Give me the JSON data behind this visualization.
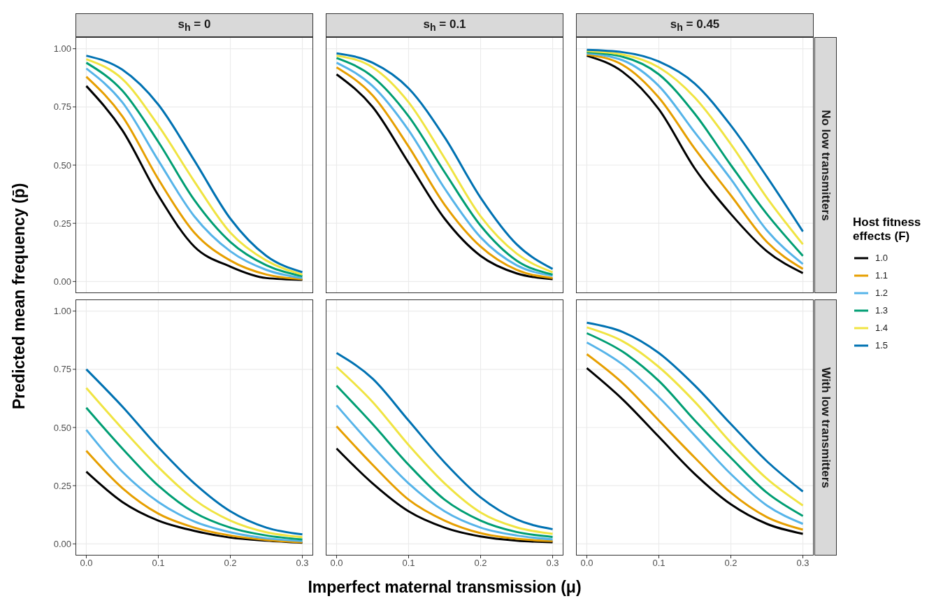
{
  "chart_data": [
    {
      "type": "line",
      "title": "s$_{h}$ = 0",
      "ylabel": "Predicted mean frequency (p̄)",
      "legend": "right",
      "legend_title": "Host fitness effects (F)",
      "x": [
        0,
        0.05,
        0.1,
        0.15,
        0.2,
        0.25,
        0.3
      ],
      "xlim": [
        -0.015,
        0.315
      ],
      "ylim": [
        -0.05,
        1.05
      ],
      "xticks": [
        {
          "value": 0,
          "label": null
        },
        {
          "value": 0.1,
          "label": null
        },
        {
          "value": 0.2,
          "label": null
        },
        {
          "value": 0.3,
          "label": null
        }
      ],
      "yticks": [
        {
          "value": 0,
          "label": "0.00"
        },
        {
          "value": 0.25,
          "label": "0.25"
        },
        {
          "value": 0.5,
          "label": "0.50"
        },
        {
          "value": 0.75,
          "label": "0.75"
        },
        {
          "value": 1,
          "label": "1.00"
        }
      ],
      "grid": true,
      "tick_labels": "y",
      "marker": "none",
      "line_style": "solid",
      "series": [
        {
          "name": "1.0",
          "color": "#000000",
          "values": [
            0.84,
            0.65,
            0.37,
            0.15,
            0.064,
            0.015,
            0.007
          ]
        },
        {
          "name": "1.1",
          "color": "#e69f00",
          "values": [
            0.88,
            0.71,
            0.44,
            0.21,
            0.09,
            0.03,
            0.01
          ]
        },
        {
          "name": "1.2",
          "color": "#56b4e9",
          "values": [
            0.915,
            0.77,
            0.52,
            0.28,
            0.13,
            0.05,
            0.015
          ]
        },
        {
          "name": "1.3",
          "color": "#009e73",
          "values": [
            0.94,
            0.82,
            0.6,
            0.35,
            0.17,
            0.07,
            0.023
          ]
        },
        {
          "name": "1.4",
          "color": "#f0e442",
          "values": [
            0.955,
            0.87,
            0.67,
            0.43,
            0.21,
            0.09,
            0.03
          ]
        },
        {
          "name": "1.5",
          "color": "#0072b2",
          "values": [
            0.97,
            0.91,
            0.76,
            0.52,
            0.27,
            0.11,
            0.04
          ]
        }
      ]
    },
    {
      "type": "line",
      "title": "s$_{h}$ = 0.1",
      "x": [
        0,
        0.05,
        0.1,
        0.15,
        0.2,
        0.25,
        0.3
      ],
      "xlim": [
        -0.015,
        0.315
      ],
      "ylim": [
        -0.05,
        1.05
      ],
      "xticks": [
        {
          "value": 0,
          "label": null
        },
        {
          "value": 0.1,
          "label": null
        },
        {
          "value": 0.2,
          "label": null
        },
        {
          "value": 0.3,
          "label": null
        }
      ],
      "yticks": [
        {
          "value": 0,
          "label": null
        },
        {
          "value": 0.25,
          "label": null
        },
        {
          "value": 0.5,
          "label": null
        },
        {
          "value": 0.75,
          "label": null
        },
        {
          "value": 1,
          "label": null
        }
      ],
      "grid": true,
      "tick_labels": false,
      "marker": "none",
      "line_style": "solid",
      "series": [
        {
          "name": "1.0",
          "color": "#000000",
          "values": [
            0.89,
            0.75,
            0.51,
            0.27,
            0.11,
            0.035,
            0.01
          ]
        },
        {
          "name": "1.1",
          "color": "#e69f00",
          "values": [
            0.92,
            0.8,
            0.58,
            0.33,
            0.15,
            0.05,
            0.015
          ]
        },
        {
          "name": "1.2",
          "color": "#56b4e9",
          "values": [
            0.94,
            0.84,
            0.65,
            0.4,
            0.19,
            0.07,
            0.025
          ]
        },
        {
          "name": "1.3",
          "color": "#009e73",
          "values": [
            0.96,
            0.88,
            0.71,
            0.47,
            0.24,
            0.09,
            0.03
          ]
        },
        {
          "name": "1.4",
          "color": "#f0e442",
          "values": [
            0.97,
            0.92,
            0.77,
            0.53,
            0.28,
            0.12,
            0.04
          ]
        },
        {
          "name": "1.5",
          "color": "#0072b2",
          "values": [
            0.98,
            0.94,
            0.83,
            0.62,
            0.36,
            0.16,
            0.054
          ]
        }
      ]
    },
    {
      "type": "line",
      "title": "s$_{h}$ = 0.45",
      "y2label": "No low transmitters",
      "x": [
        0,
        0.05,
        0.1,
        0.15,
        0.2,
        0.25,
        0.3
      ],
      "xlim": [
        -0.015,
        0.315
      ],
      "ylim": [
        -0.05,
        1.05
      ],
      "xticks": [
        {
          "value": 0,
          "label": null
        },
        {
          "value": 0.1,
          "label": null
        },
        {
          "value": 0.2,
          "label": null
        },
        {
          "value": 0.3,
          "label": null
        }
      ],
      "yticks": [
        {
          "value": 0,
          "label": null
        },
        {
          "value": 0.25,
          "label": null
        },
        {
          "value": 0.5,
          "label": null
        },
        {
          "value": 0.75,
          "label": null
        },
        {
          "value": 1,
          "label": null
        }
      ],
      "grid": true,
      "tick_labels": false,
      "marker": "none",
      "line_style": "solid",
      "series": [
        {
          "name": "1.0",
          "color": "#000000",
          "values": [
            0.97,
            0.9,
            0.74,
            0.485,
            0.29,
            0.13,
            0.036
          ]
        },
        {
          "name": "1.1",
          "color": "#e69f00",
          "values": [
            0.975,
            0.93,
            0.79,
            0.57,
            0.37,
            0.17,
            0.054
          ]
        },
        {
          "name": "1.2",
          "color": "#56b4e9",
          "values": [
            0.98,
            0.95,
            0.84,
            0.64,
            0.44,
            0.22,
            0.075
          ]
        },
        {
          "name": "1.3",
          "color": "#009e73",
          "values": [
            0.985,
            0.965,
            0.89,
            0.72,
            0.5,
            0.29,
            0.11
          ]
        },
        {
          "name": "1.4",
          "color": "#f0e442",
          "values": [
            0.99,
            0.975,
            0.92,
            0.79,
            0.59,
            0.36,
            0.16
          ]
        },
        {
          "name": "1.5",
          "color": "#0072b2",
          "values": [
            0.995,
            0.985,
            0.945,
            0.85,
            0.67,
            0.45,
            0.215
          ]
        }
      ]
    },
    {
      "type": "line",
      "x": [
        0,
        0.05,
        0.1,
        0.15,
        0.2,
        0.25,
        0.3
      ],
      "xlim": [
        -0.015,
        0.315
      ],
      "ylim": [
        -0.05,
        1.05
      ],
      "xticks": [
        {
          "value": 0,
          "label": "0.0"
        },
        {
          "value": 0.1,
          "label": "0.1"
        },
        {
          "value": 0.2,
          "label": "0.2"
        },
        {
          "value": 0.3,
          "label": "0.3"
        }
      ],
      "yticks": [
        {
          "value": 0,
          "label": "0.00"
        },
        {
          "value": 0.25,
          "label": "0.25"
        },
        {
          "value": 0.5,
          "label": "0.50"
        },
        {
          "value": 0.75,
          "label": "0.75"
        },
        {
          "value": 1,
          "label": "1.00"
        }
      ],
      "grid": true,
      "marker": "none",
      "line_style": "solid",
      "series": [
        {
          "name": "1.0",
          "color": "#000000",
          "values": [
            0.31,
            0.18,
            0.1,
            0.056,
            0.027,
            0.014,
            0.005
          ]
        },
        {
          "name": "1.1",
          "color": "#e69f00",
          "values": [
            0.4,
            0.24,
            0.13,
            0.07,
            0.036,
            0.017,
            0.007
          ]
        },
        {
          "name": "1.2",
          "color": "#56b4e9",
          "values": [
            0.49,
            0.31,
            0.18,
            0.096,
            0.05,
            0.024,
            0.012
          ]
        },
        {
          "name": "1.3",
          "color": "#009e73",
          "values": [
            0.585,
            0.41,
            0.25,
            0.135,
            0.07,
            0.036,
            0.019
          ]
        },
        {
          "name": "1.4",
          "color": "#f0e442",
          "values": [
            0.67,
            0.495,
            0.33,
            0.19,
            0.1,
            0.05,
            0.029
          ]
        },
        {
          "name": "1.5",
          "color": "#0072b2",
          "values": [
            0.75,
            0.59,
            0.415,
            0.26,
            0.14,
            0.07,
            0.041
          ]
        }
      ]
    },
    {
      "type": "line",
      "xlabel": "Imperfect maternal transmission (μ)",
      "x": [
        0,
        0.05,
        0.1,
        0.15,
        0.2,
        0.25,
        0.3
      ],
      "xlim": [
        -0.015,
        0.315
      ],
      "ylim": [
        -0.05,
        1.05
      ],
      "xticks": [
        {
          "value": 0,
          "label": "0.0"
        },
        {
          "value": 0.1,
          "label": "0.1"
        },
        {
          "value": 0.2,
          "label": "0.2"
        },
        {
          "value": 0.3,
          "label": "0.3"
        }
      ],
      "yticks": [
        {
          "value": 0,
          "label": null
        },
        {
          "value": 0.25,
          "label": null
        },
        {
          "value": 0.5,
          "label": null
        },
        {
          "value": 0.75,
          "label": null
        },
        {
          "value": 1,
          "label": null
        }
      ],
      "grid": true,
      "tick_labels": "x",
      "marker": "none",
      "line_style": "solid",
      "series": [
        {
          "name": "1.0",
          "color": "#000000",
          "values": [
            0.41,
            0.26,
            0.14,
            0.07,
            0.032,
            0.014,
            0.007
          ]
        },
        {
          "name": "1.1",
          "color": "#e69f00",
          "values": [
            0.505,
            0.34,
            0.19,
            0.1,
            0.046,
            0.022,
            0.012
          ]
        },
        {
          "name": "1.2",
          "color": "#56b4e9",
          "values": [
            0.595,
            0.42,
            0.26,
            0.14,
            0.07,
            0.036,
            0.019
          ]
        },
        {
          "name": "1.3",
          "color": "#009e73",
          "values": [
            0.68,
            0.515,
            0.34,
            0.19,
            0.1,
            0.051,
            0.03
          ]
        },
        {
          "name": "1.4",
          "color": "#f0e442",
          "values": [
            0.76,
            0.61,
            0.425,
            0.26,
            0.135,
            0.071,
            0.043
          ]
        },
        {
          "name": "1.5",
          "color": "#0072b2",
          "values": [
            0.82,
            0.71,
            0.53,
            0.35,
            0.2,
            0.105,
            0.063
          ]
        }
      ]
    },
    {
      "type": "line",
      "y2label": "With low transmitters",
      "x": [
        0,
        0.05,
        0.1,
        0.15,
        0.2,
        0.25,
        0.3
      ],
      "xlim": [
        -0.015,
        0.315
      ],
      "ylim": [
        -0.05,
        1.05
      ],
      "xticks": [
        {
          "value": 0,
          "label": "0.0"
        },
        {
          "value": 0.1,
          "label": "0.1"
        },
        {
          "value": 0.2,
          "label": "0.2"
        },
        {
          "value": 0.3,
          "label": "0.3"
        }
      ],
      "yticks": [
        {
          "value": 0,
          "label": null
        },
        {
          "value": 0.25,
          "label": null
        },
        {
          "value": 0.5,
          "label": null
        },
        {
          "value": 0.75,
          "label": null
        },
        {
          "value": 1,
          "label": null
        }
      ],
      "grid": true,
      "tick_labels": "x",
      "marker": "none",
      "line_style": "solid",
      "series": [
        {
          "name": "1.0",
          "color": "#000000",
          "values": [
            0.755,
            0.62,
            0.46,
            0.3,
            0.17,
            0.086,
            0.043
          ]
        },
        {
          "name": "1.1",
          "color": "#e69f00",
          "values": [
            0.815,
            0.69,
            0.53,
            0.37,
            0.22,
            0.115,
            0.061
          ]
        },
        {
          "name": "1.2",
          "color": "#56b4e9",
          "values": [
            0.865,
            0.77,
            0.63,
            0.465,
            0.3,
            0.165,
            0.086
          ]
        },
        {
          "name": "1.3",
          "color": "#009e73",
          "values": [
            0.905,
            0.825,
            0.7,
            0.53,
            0.37,
            0.22,
            0.12
          ]
        },
        {
          "name": "1.4",
          "color": "#f0e442",
          "values": [
            0.93,
            0.87,
            0.76,
            0.61,
            0.435,
            0.28,
            0.165
          ]
        },
        {
          "name": "1.5",
          "color": "#0072b2",
          "values": [
            0.95,
            0.91,
            0.82,
            0.68,
            0.515,
            0.355,
            0.225
          ]
        }
      ]
    }
  ]
}
